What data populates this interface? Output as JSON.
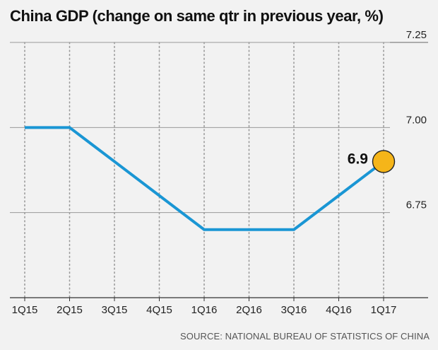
{
  "chart_data": {
    "type": "line",
    "title": "China GDP (change on same qtr in previous year, %)",
    "source": "SOURCE: NATIONAL BUREAU OF STATISTICS OF CHINA",
    "categories": [
      "1Q15",
      "2Q15",
      "3Q15",
      "4Q15",
      "1Q16",
      "2Q16",
      "3Q16",
      "4Q16",
      "1Q17"
    ],
    "series": [
      {
        "values": [
          7.0,
          7.0,
          6.9,
          6.8,
          6.7,
          6.7,
          6.7,
          6.8,
          6.9
        ]
      }
    ],
    "yticks": [
      "6.75",
      "7.00",
      "7.25"
    ],
    "ylim": [
      6.5,
      7.25
    ],
    "xlabel": "",
    "ylabel": "",
    "grid": true,
    "y_axis_side": "right",
    "annotation": {
      "category": "1Q17",
      "value": 6.9,
      "label": "6.9"
    },
    "colors": {
      "line": "#1a96d4",
      "marker_fill": "#f5b519",
      "marker_stroke": "#222222",
      "grid": "#9a9a9a",
      "background": "#f2f2f2"
    }
  }
}
